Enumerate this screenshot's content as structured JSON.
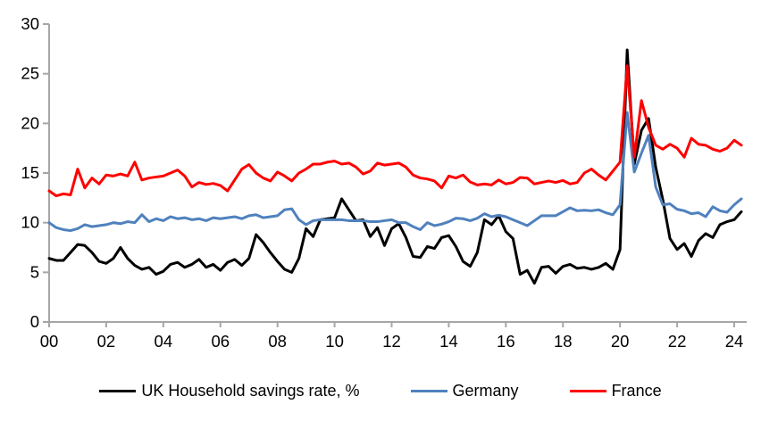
{
  "figure": {
    "background": "#FFFFFF",
    "axis_color": "#A6A6A6",
    "text_color": "#000000"
  },
  "chart_data": {
    "type": "line",
    "title": "",
    "xlabel": "",
    "ylabel": "",
    "frequency": "quarterly",
    "x_start": 2000,
    "x_step": 0.25,
    "x_axis": {
      "tick_years": [
        2000,
        2002,
        2004,
        2006,
        2008,
        2010,
        2012,
        2014,
        2016,
        2018,
        2020,
        2022,
        2024
      ],
      "tick_labels": [
        "00",
        "02",
        "04",
        "06",
        "08",
        "10",
        "12",
        "14",
        "16",
        "18",
        "20",
        "22",
        "24"
      ]
    },
    "y_axis": {
      "range": [
        0,
        30
      ],
      "ticks": [
        0,
        5,
        10,
        15,
        20,
        25,
        30
      ],
      "tick_labels": [
        "0",
        "5",
        "10",
        "15",
        "20",
        "25",
        "30"
      ]
    },
    "grid": false,
    "legend_position": "bottom",
    "series": [
      {
        "name": "UK Household savings rate, %",
        "color": "#000000",
        "values": [
          6.4,
          6.2,
          6.2,
          7.0,
          7.8,
          7.7,
          7.0,
          6.1,
          5.9,
          6.4,
          7.5,
          6.4,
          5.7,
          5.3,
          5.5,
          4.8,
          5.1,
          5.8,
          6.0,
          5.5,
          5.8,
          6.3,
          5.5,
          5.8,
          5.2,
          6.0,
          6.3,
          5.7,
          6.4,
          8.8,
          8.0,
          7.0,
          6.1,
          5.3,
          5.0,
          6.4,
          9.4,
          8.6,
          10.3,
          10.4,
          10.5,
          12.4,
          11.3,
          10.2,
          10.3,
          8.6,
          9.5,
          7.7,
          9.4,
          9.9,
          8.5,
          6.6,
          6.5,
          7.6,
          7.4,
          8.5,
          8.7,
          7.6,
          6.1,
          5.6,
          7.0,
          10.3,
          9.8,
          10.7,
          9.1,
          8.4,
          4.8,
          5.2,
          3.9,
          5.5,
          5.6,
          4.9,
          5.6,
          5.8,
          5.4,
          5.5,
          5.3,
          5.5,
          5.9,
          5.3,
          7.3,
          27.4,
          15.9,
          19.3,
          20.5,
          15.6,
          12.3,
          8.4,
          7.3,
          7.9,
          6.6,
          8.2,
          8.9,
          8.5,
          9.8,
          10.1,
          10.3,
          11.1
        ]
      },
      {
        "name": "Germany",
        "color": "#4F81BD",
        "values": [
          10.0,
          9.5,
          9.3,
          9.2,
          9.4,
          9.8,
          9.6,
          9.7,
          9.8,
          10.0,
          9.9,
          10.1,
          10.0,
          10.8,
          10.1,
          10.4,
          10.2,
          10.6,
          10.4,
          10.5,
          10.3,
          10.4,
          10.2,
          10.5,
          10.4,
          10.5,
          10.6,
          10.4,
          10.7,
          10.8,
          10.5,
          10.6,
          10.7,
          11.3,
          11.4,
          10.3,
          9.8,
          10.2,
          10.3,
          10.3,
          10.3,
          10.3,
          10.2,
          10.2,
          10.2,
          10.1,
          10.1,
          10.2,
          10.3,
          10.0,
          10.0,
          9.6,
          9.3,
          10.0,
          9.7,
          9.85,
          10.1,
          10.45,
          10.4,
          10.2,
          10.45,
          10.9,
          10.6,
          10.75,
          10.6,
          10.3,
          10.0,
          9.7,
          10.2,
          10.7,
          10.7,
          10.7,
          11.1,
          11.5,
          11.2,
          11.25,
          11.2,
          11.3,
          11.0,
          10.8,
          11.8,
          21.1,
          15.1,
          17.0,
          18.8,
          13.6,
          11.8,
          11.9,
          11.35,
          11.2,
          10.9,
          11.0,
          10.6,
          11.6,
          11.2,
          11.05,
          11.8,
          12.4
        ]
      },
      {
        "name": "France",
        "color": "#FF0000",
        "values": [
          13.2,
          12.7,
          12.9,
          12.8,
          15.4,
          13.5,
          14.5,
          13.9,
          14.8,
          14.7,
          14.9,
          14.7,
          16.1,
          14.3,
          14.5,
          14.6,
          14.7,
          15.0,
          15.3,
          14.7,
          13.6,
          14.05,
          13.85,
          13.95,
          13.75,
          13.2,
          14.3,
          15.4,
          15.85,
          15.0,
          14.5,
          14.2,
          15.1,
          14.7,
          14.2,
          15.0,
          15.4,
          15.9,
          15.9,
          16.1,
          16.2,
          15.9,
          16.0,
          15.6,
          14.9,
          15.2,
          16.0,
          15.8,
          15.9,
          16.0,
          15.6,
          14.8,
          14.5,
          14.4,
          14.2,
          13.5,
          14.7,
          14.5,
          14.8,
          14.1,
          13.8,
          13.9,
          13.8,
          14.3,
          13.9,
          14.05,
          14.55,
          14.5,
          13.9,
          14.05,
          14.2,
          14.05,
          14.25,
          13.9,
          14.05,
          15.0,
          15.4,
          14.8,
          14.3,
          15.2,
          16.1,
          25.8,
          16.6,
          22.3,
          19.6,
          17.8,
          17.4,
          17.9,
          17.5,
          16.6,
          18.5,
          17.9,
          17.8,
          17.4,
          17.2,
          17.5,
          18.3,
          17.8
        ]
      }
    ]
  }
}
